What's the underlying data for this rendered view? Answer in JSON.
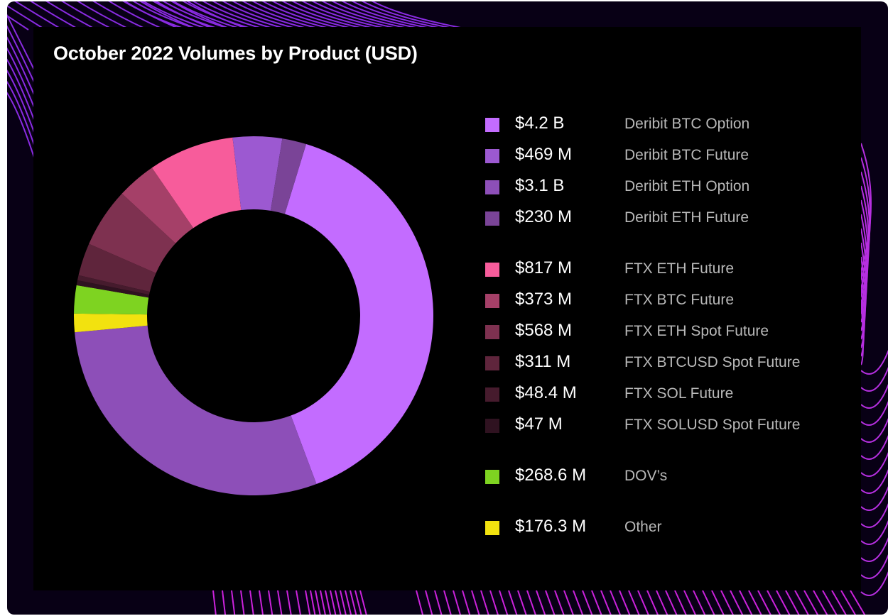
{
  "chart_data": {
    "type": "pie",
    "variant": "donut",
    "title": "October 2022 Volumes by Product (USD)",
    "legend_position": "right",
    "unit": "USD",
    "slices": [
      {
        "label": "Deribit BTC Option",
        "value_text": "$4.2 B",
        "value_musd": 4200,
        "color": "#c36cff"
      },
      {
        "label": "Deribit BTC Future",
        "value_text": "$469 M",
        "value_musd": 469,
        "color": "#9c59d1"
      },
      {
        "label": "Deribit ETH Option",
        "value_text": "$3.1 B",
        "value_musd": 3100,
        "color": "#8d4fb8"
      },
      {
        "label": "Deribit ETH Future",
        "value_text": "$230 M",
        "value_musd": 230,
        "color": "#7a4497"
      },
      {
        "label": "FTX ETH Future",
        "value_text": "$817 M",
        "value_musd": 817,
        "color": "#f75c9b"
      },
      {
        "label": "FTX BTC Future",
        "value_text": "$373 M",
        "value_musd": 373,
        "color": "#a54068"
      },
      {
        "label": "FTX ETH Spot Future",
        "value_text": "$568 M",
        "value_musd": 568,
        "color": "#7e3150"
      },
      {
        "label": "FTX BTCUSD Spot Future",
        "value_text": "$311 M",
        "value_musd": 311,
        "color": "#5f253c"
      },
      {
        "label": "FTX SOL Future",
        "value_text": "$48.4 M",
        "value_musd": 48.4,
        "color": "#461b2d"
      },
      {
        "label": "FTX SOLUSD Spot Future",
        "value_text": "$47 M",
        "value_musd": 47,
        "color": "#2f1220"
      },
      {
        "label": "DOV’s",
        "value_text": "$268.6 M",
        "value_musd": 268.6,
        "color": "#7ed321"
      },
      {
        "label": "Other",
        "value_text": "$176.3 M",
        "value_musd": 176.3,
        "color": "#f2e20f"
      }
    ],
    "draw_order_clockwise_from_top": [
      "Deribit BTC Option",
      "Deribit ETH Option",
      "Other",
      "DOV’s",
      "FTX SOLUSD Spot Future",
      "FTX SOL Future",
      "FTX BTCUSD Spot Future",
      "FTX ETH Spot Future",
      "FTX BTC Future",
      "FTX ETH Future",
      "Deribit BTC Future",
      "Deribit ETH Future"
    ]
  }
}
